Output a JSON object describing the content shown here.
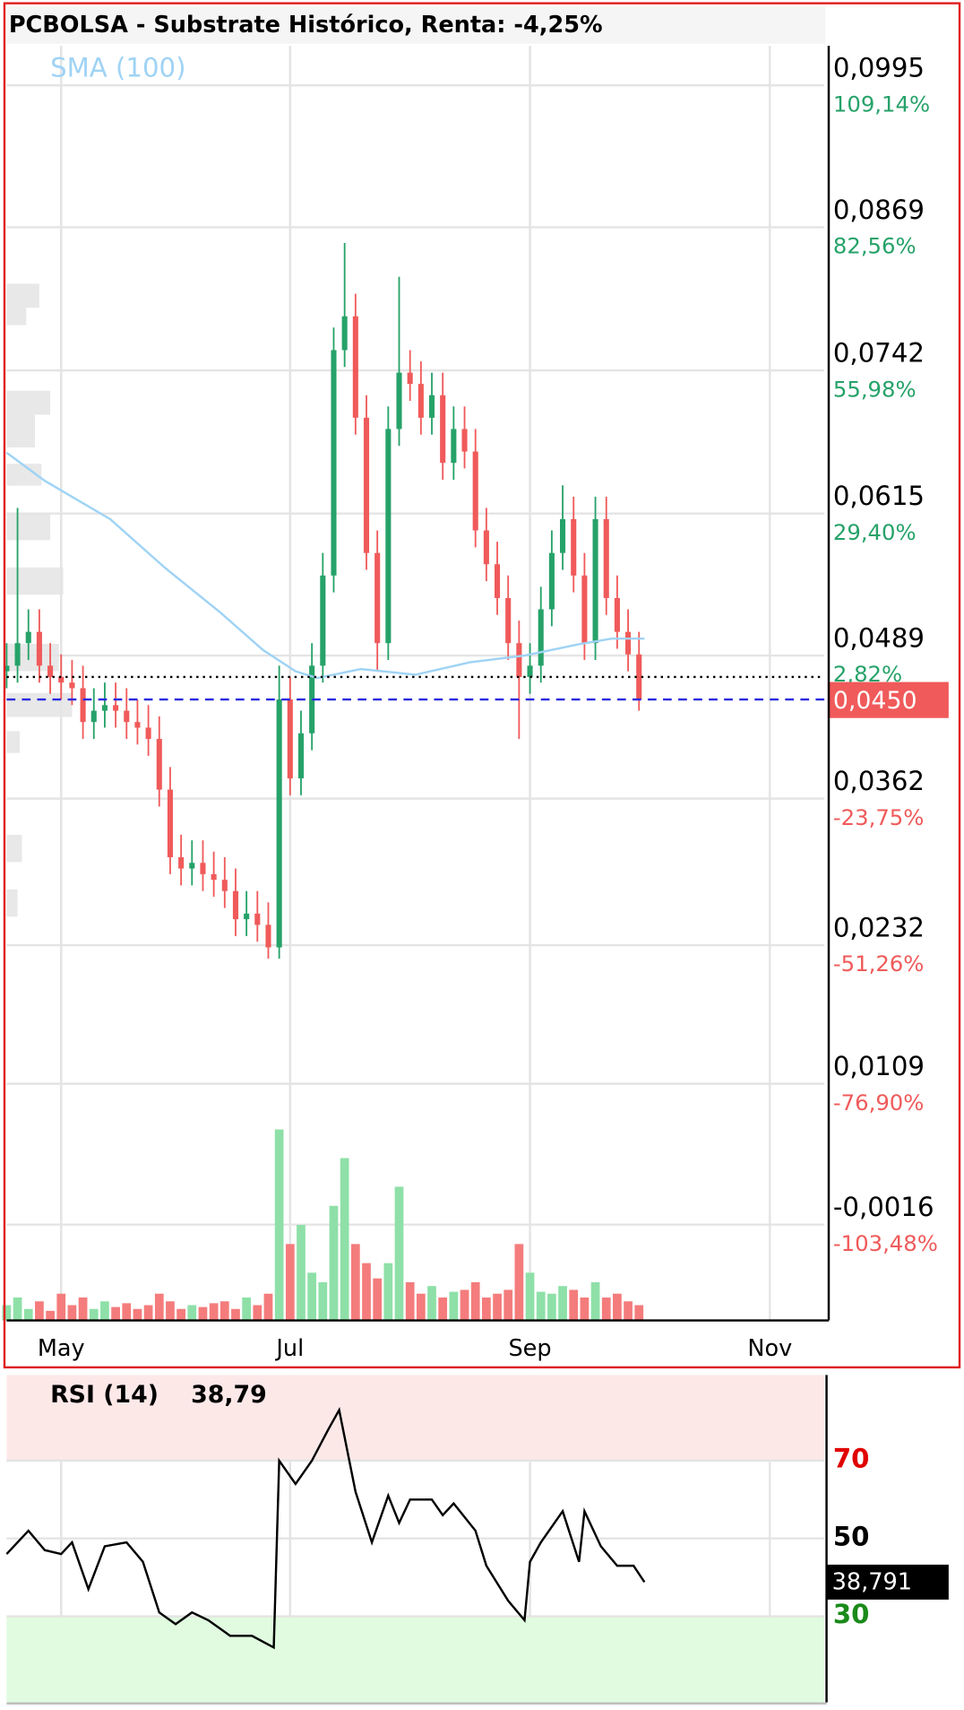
{
  "chart_data": [
    {
      "type": "candlestick",
      "title": "PCBOLSA - Substrate Histórico, Renta: -4,25%",
      "up_color": "#26a269",
      "down_color": "#f05a5a",
      "volume_up_color": "#8ee0a8",
      "volume_down_color": "#f47c7c",
      "x": [
        0,
        2,
        4,
        6,
        8,
        10,
        12,
        14,
        16,
        18,
        20,
        22,
        24,
        26,
        28,
        30,
        32,
        34,
        36,
        38,
        40,
        42,
        44,
        46,
        48,
        50,
        52,
        54,
        56,
        58,
        60,
        62,
        64,
        66,
        68,
        70,
        72,
        74,
        76,
        78,
        80,
        82,
        84,
        86,
        88,
        90,
        92,
        94,
        96,
        98,
        100,
        102,
        104,
        106,
        108,
        110,
        112,
        114,
        116
      ],
      "open": [
        0.0475,
        0.048,
        0.05,
        0.051,
        0.048,
        0.047,
        0.0465,
        0.046,
        0.043,
        0.044,
        0.0445,
        0.044,
        0.043,
        0.0425,
        0.0415,
        0.037,
        0.031,
        0.03,
        0.0305,
        0.0295,
        0.029,
        0.028,
        0.0255,
        0.026,
        0.025,
        0.023,
        0.045,
        0.038,
        0.042,
        0.048,
        0.056,
        0.076,
        0.079,
        0.07,
        0.058,
        0.05,
        0.069,
        0.074,
        0.073,
        0.07,
        0.072,
        0.066,
        0.069,
        0.067,
        0.06,
        0.057,
        0.054,
        0.05,
        0.047,
        0.048,
        0.053,
        0.058,
        0.061,
        0.056,
        0.05,
        0.061,
        0.054,
        0.051,
        0.049
      ],
      "high": [
        0.05,
        0.062,
        0.053,
        0.053,
        0.05,
        0.049,
        0.0485,
        0.048,
        0.046,
        0.0465,
        0.0465,
        0.046,
        0.045,
        0.0445,
        0.0435,
        0.039,
        0.033,
        0.0325,
        0.0325,
        0.0315,
        0.031,
        0.03,
        0.028,
        0.028,
        0.027,
        0.048,
        0.047,
        0.044,
        0.05,
        0.058,
        0.078,
        0.0855,
        0.081,
        0.072,
        0.06,
        0.071,
        0.0825,
        0.076,
        0.075,
        0.074,
        0.074,
        0.071,
        0.071,
        0.069,
        0.062,
        0.059,
        0.056,
        0.052,
        0.05,
        0.055,
        0.06,
        0.064,
        0.063,
        0.058,
        0.063,
        0.063,
        0.056,
        0.053,
        0.051
      ],
      "low": [
        0.046,
        0.0465,
        0.0485,
        0.0465,
        0.0455,
        0.045,
        0.0445,
        0.0415,
        0.0415,
        0.0425,
        0.0425,
        0.0415,
        0.041,
        0.04,
        0.0355,
        0.0295,
        0.0285,
        0.0285,
        0.028,
        0.0275,
        0.0265,
        0.024,
        0.024,
        0.0235,
        0.022,
        0.022,
        0.0365,
        0.0365,
        0.0405,
        0.0465,
        0.0545,
        0.0745,
        0.0685,
        0.0565,
        0.0475,
        0.0485,
        0.0675,
        0.0715,
        0.0685,
        0.0685,
        0.0645,
        0.0645,
        0.0655,
        0.0585,
        0.0555,
        0.0525,
        0.0485,
        0.0415,
        0.0455,
        0.0465,
        0.0515,
        0.0565,
        0.0545,
        0.0485,
        0.0485,
        0.0525,
        0.0495,
        0.0475,
        0.044
      ],
      "close": [
        0.048,
        0.05,
        0.051,
        0.048,
        0.047,
        0.0465,
        0.046,
        0.043,
        0.044,
        0.0445,
        0.044,
        0.043,
        0.0425,
        0.0415,
        0.037,
        0.031,
        0.03,
        0.0305,
        0.0295,
        0.029,
        0.028,
        0.0255,
        0.026,
        0.025,
        0.023,
        0.045,
        0.038,
        0.042,
        0.048,
        0.056,
        0.076,
        0.079,
        0.07,
        0.058,
        0.05,
        0.069,
        0.074,
        0.073,
        0.07,
        0.072,
        0.066,
        0.069,
        0.067,
        0.06,
        0.057,
        0.054,
        0.05,
        0.047,
        0.048,
        0.053,
        0.058,
        0.061,
        0.056,
        0.05,
        0.061,
        0.054,
        0.051,
        0.049,
        0.045
      ],
      "volume": [
        8,
        12,
        6,
        10,
        5,
        14,
        8,
        12,
        6,
        10,
        7,
        9,
        6,
        8,
        14,
        10,
        6,
        8,
        7,
        9,
        10,
        6,
        12,
        8,
        14,
        100,
        40,
        50,
        25,
        20,
        60,
        85,
        40,
        30,
        22,
        30,
        70,
        20,
        14,
        18,
        12,
        15,
        16,
        20,
        12,
        14,
        16,
        40,
        25,
        15,
        14,
        18,
        16,
        12,
        20,
        12,
        14,
        10,
        8
      ],
      "sma": {
        "name": "SMA (100)",
        "color": "#9fd3f5",
        "x": [
          0,
          7,
          19,
          29,
          39,
          47,
          53,
          57,
          65,
          75,
          85,
          95,
          105,
          111,
          117
        ],
        "values": [
          0.0669,
          0.0644,
          0.061,
          0.0567,
          0.0528,
          0.0494,
          0.0475,
          0.0469,
          0.0477,
          0.0472,
          0.0483,
          0.0489,
          0.0499,
          0.0504,
          0.0504
        ]
      },
      "reference_price": 0.047,
      "last_price": {
        "value": 0.045,
        "label": "0,0450"
      },
      "xlim": [
        0,
        150
      ],
      "xticks": [
        {
          "value": 10,
          "label": "May"
        },
        {
          "value": 52,
          "label": "Jul"
        },
        {
          "value": 96,
          "label": "Sep"
        },
        {
          "value": 140,
          "label": "Nov"
        }
      ],
      "ylim": [
        -0.0101,
        0.103
      ],
      "yticks": [
        {
          "value": 0.0995,
          "label": "0,0995"
        },
        {
          "value": 0.0869,
          "label": "0,0869"
        },
        {
          "value": 0.0742,
          "label": "0,0742"
        },
        {
          "value": 0.0615,
          "label": "0,0615"
        },
        {
          "value": 0.0489,
          "label": "0,0489"
        },
        {
          "value": 0.0362,
          "label": "0,0362"
        },
        {
          "value": 0.0232,
          "label": "0,0232"
        },
        {
          "value": 0.0109,
          "label": "0,0109"
        },
        {
          "value": -0.0016,
          "label": "-0,0016"
        }
      ],
      "y_percent_labels": [
        "109,14%",
        "82,56%",
        "55,98%",
        "29,40%",
        "2,82%",
        "-23,75%",
        "-51,26%",
        "-76,90%",
        "-103,48%"
      ],
      "grid": true
    },
    {
      "type": "line",
      "title": "RSI (14)",
      "color": "#000000",
      "x": [
        0,
        4,
        7,
        10,
        12,
        15,
        18,
        22,
        25,
        28,
        31,
        34,
        37,
        41,
        45,
        49,
        50,
        53,
        56,
        59,
        61,
        64,
        67,
        70,
        72,
        74,
        78,
        80,
        82,
        86,
        88,
        92,
        95,
        96,
        98,
        102,
        105,
        106,
        109,
        112,
        115,
        117
      ],
      "values": [
        46,
        52,
        47,
        46,
        49,
        37,
        48,
        49,
        44,
        31,
        28,
        31,
        29,
        25,
        25,
        22,
        70,
        64,
        70,
        78,
        83,
        62,
        49,
        61,
        54,
        60,
        60,
        56,
        59,
        52,
        43,
        34,
        29,
        44,
        49,
        57,
        44,
        57,
        48,
        43,
        43,
        38.791
      ],
      "value_label": "38,79",
      "last_value_label": "38,791",
      "overbought": 70,
      "oversold": 30,
      "overbought_color": "#fde8e8",
      "oversold_color": "#e0fbe0",
      "xlim": [
        0,
        150
      ],
      "ylim": [
        7.9,
        92
      ],
      "yticks": [
        30,
        50,
        70
      ],
      "ytick_colors": [
        "#1a8a1a",
        "#000000",
        "#e00000"
      ],
      "grid": true
    }
  ]
}
